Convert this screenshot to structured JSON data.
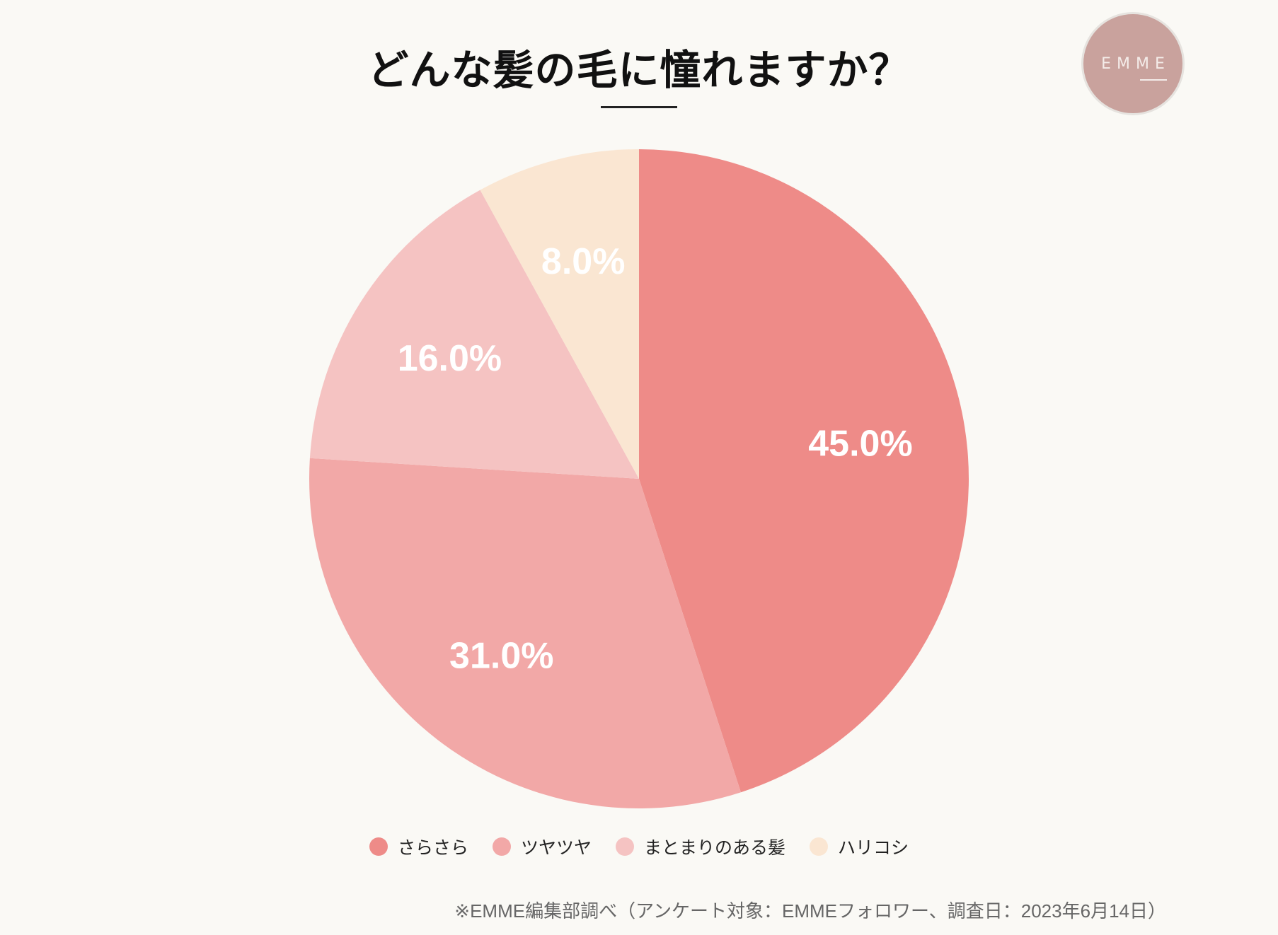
{
  "chart_data": {
    "type": "pie",
    "title": "どんな髪の毛に憧れますか？",
    "categories": [
      "さらさら",
      "ツヤツヤ",
      "まとまりのある髪",
      "ハリコシ"
    ],
    "values": [
      45.0,
      31.0,
      16.0,
      8.0
    ],
    "labels": [
      "45.0%",
      "31.0%",
      "16.0%",
      "8.0%"
    ],
    "colors": [
      "#ee8b88",
      "#f2a8a7",
      "#f5c3c2",
      "#fae6d2"
    ],
    "start": "top",
    "direction": "clockwise",
    "legend": "bottom"
  },
  "logo": {
    "text": "EMME"
  },
  "footer": "※EMME編集部調べ（アンケート対象：EMMEフォロワー、調査日：2023年6月14日）"
}
